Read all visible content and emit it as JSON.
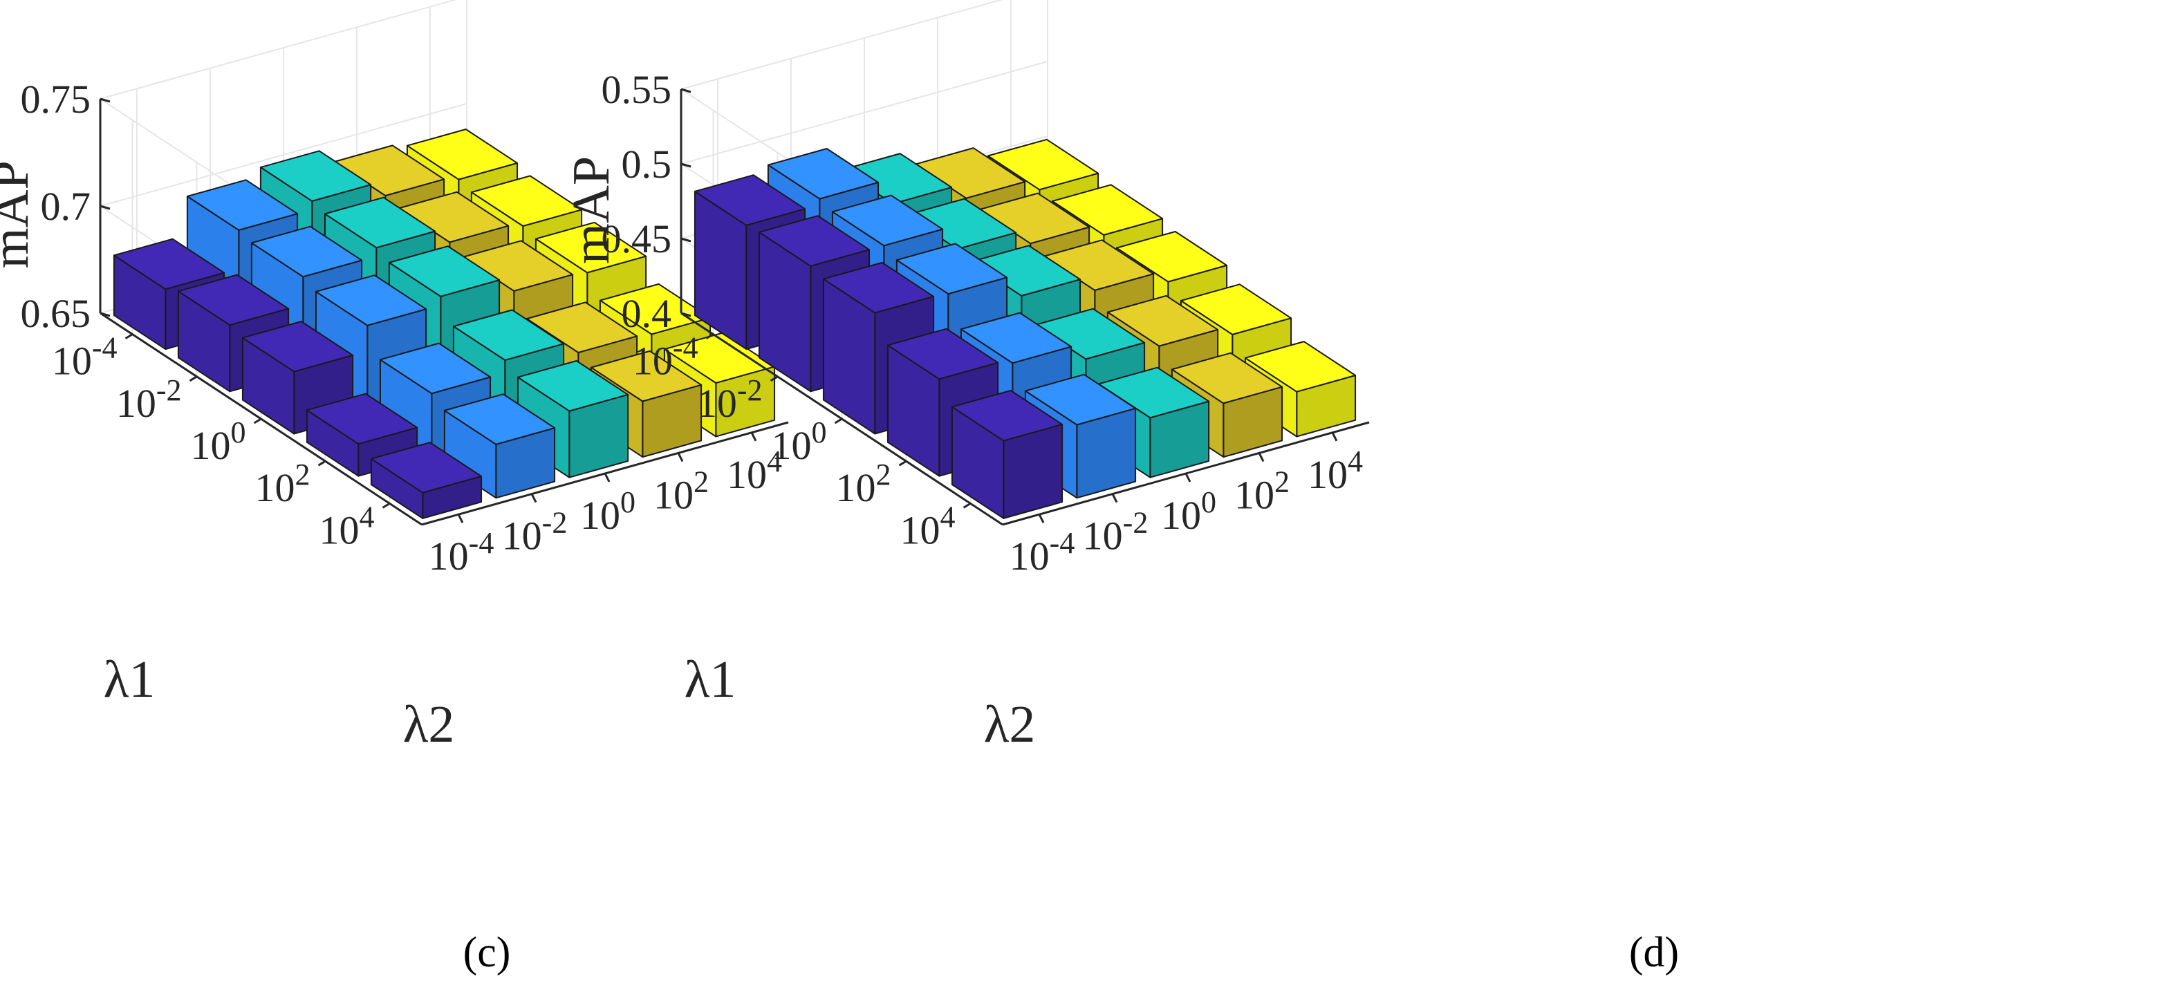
{
  "figure": {
    "captions": [
      "(c)",
      "(d)"
    ]
  },
  "chart_data": [
    {
      "type": "bar3d",
      "panel": "(c)",
      "zlabel": "mAP",
      "xlabel": "λ1",
      "ylabel": "λ2",
      "x_ticks": [
        "10^-4",
        "10^-2",
        "10^0",
        "10^2",
        "10^4"
      ],
      "y_ticks": [
        "10^-4",
        "10^-2",
        "10^0",
        "10^2",
        "10^4"
      ],
      "zlim": [
        0.65,
        0.75
      ],
      "z_ticks": [
        "0.65",
        "0.7",
        "0.75"
      ],
      "series_colors": [
        "#3d26a8",
        "#2e87f7",
        "#19bfb7",
        "#d4c026",
        "#f9fb15"
      ],
      "values": [
        [
          0.678,
          0.696,
          0.7,
          0.693,
          0.691
        ],
        [
          0.681,
          0.694,
          0.698,
          0.691,
          0.689
        ],
        [
          0.679,
          0.691,
          0.695,
          0.688,
          0.687
        ],
        [
          0.665,
          0.679,
          0.685,
          0.679,
          0.678
        ],
        [
          0.662,
          0.675,
          0.681,
          0.676,
          0.675
        ]
      ]
    },
    {
      "type": "bar3d",
      "panel": "(d)",
      "zlabel": "mAP",
      "xlabel": "λ1",
      "ylabel": "λ2",
      "x_ticks": [
        "10^-4",
        "10^-2",
        "10^0",
        "10^2",
        "10^4"
      ],
      "y_ticks": [
        "10^-4",
        "10^-2",
        "10^0",
        "10^2",
        "10^4"
      ],
      "zlim": [
        0.4,
        0.55
      ],
      "z_ticks": [
        "0.4",
        "0.45",
        "0.5",
        "0.55"
      ],
      "series_colors": [
        "#3d26a8",
        "#2e87f7",
        "#19bfb7",
        "#d4c026",
        "#f9fb15"
      ],
      "values": [
        [
          0.483,
          0.487,
          0.47,
          0.46,
          0.452
        ],
        [
          0.484,
          0.484,
          0.468,
          0.458,
          0.45
        ],
        [
          0.481,
          0.48,
          0.465,
          0.455,
          0.447
        ],
        [
          0.465,
          0.462,
          0.451,
          0.446,
          0.44
        ],
        [
          0.452,
          0.449,
          0.44,
          0.436,
          0.43
        ]
      ]
    }
  ]
}
